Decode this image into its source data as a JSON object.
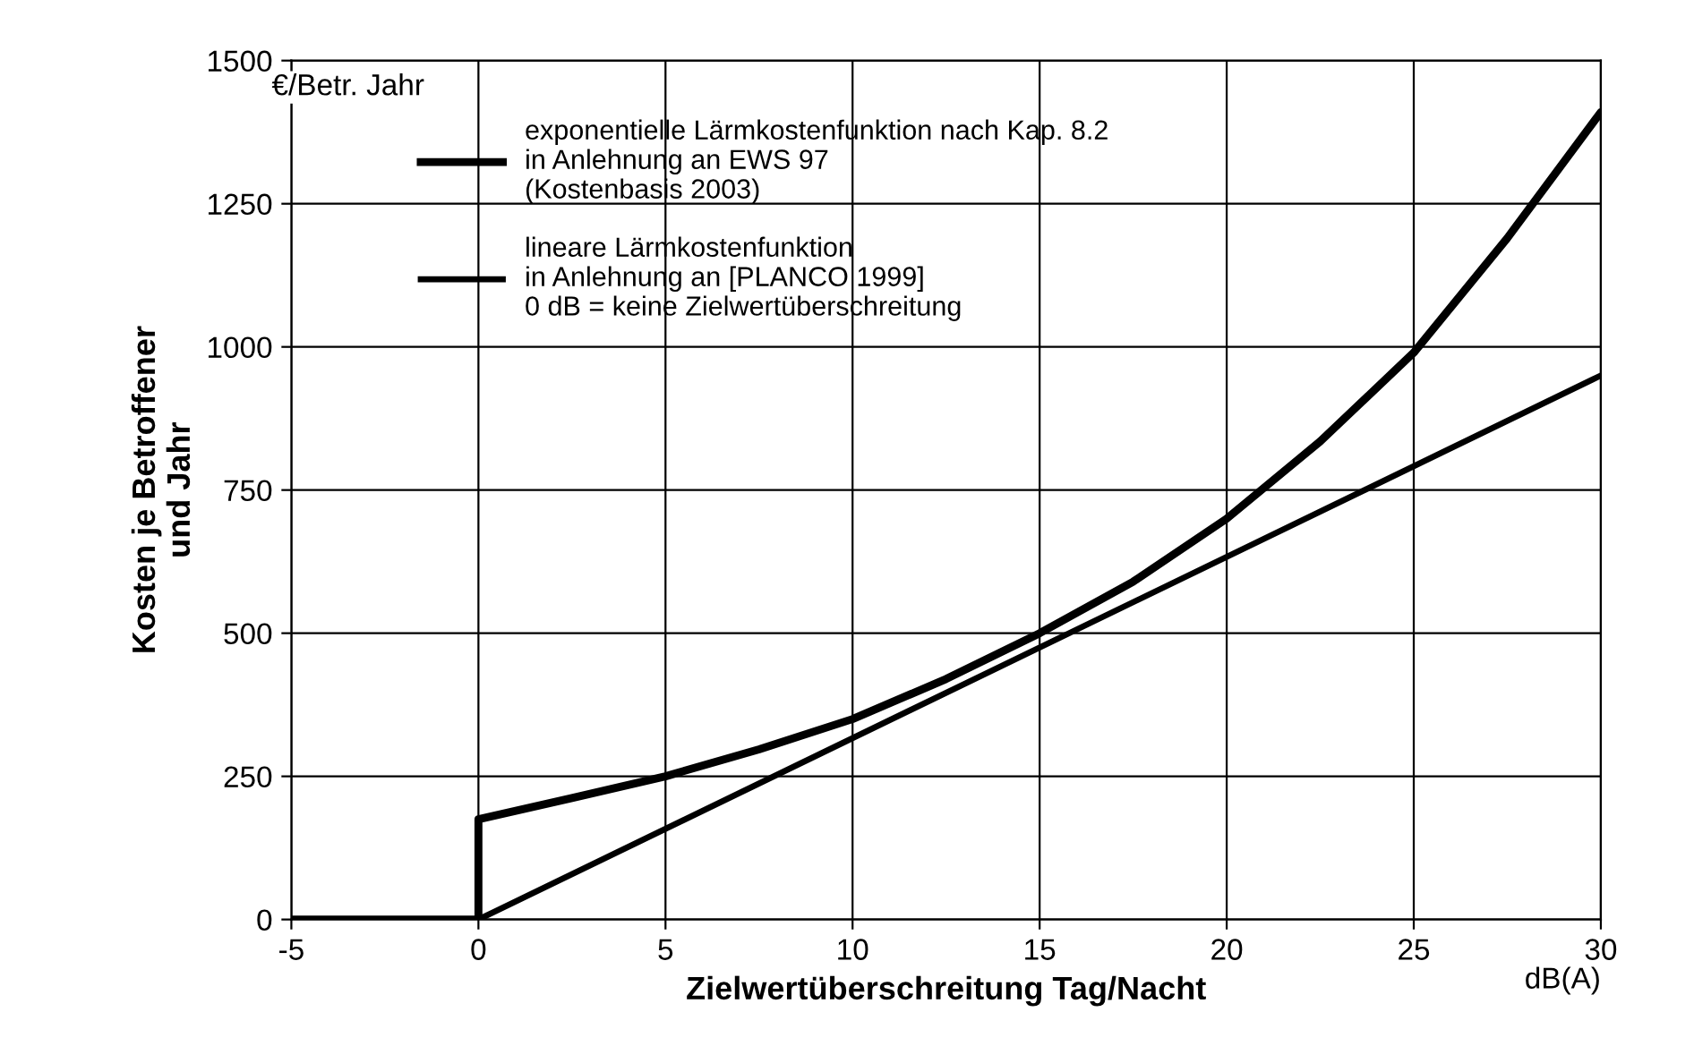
{
  "chart_data": {
    "type": "line",
    "xlabel": "Zielwertüberschreitung Tag/Nacht",
    "ylabel": "Kosten je Betroffener\nund Jahr",
    "annotations": [
      "€/Betr. Jahr",
      "dB(A)"
    ],
    "series": [
      {
        "name": "exponentielle Lärmkostenfunktion nach Kap. 8.2\nin Anlehnung an EWS 97\n(Kostenbasis 2003)",
        "color": "#000000",
        "x": [
          -5,
          0,
          0,
          2.5,
          5,
          7.5,
          10,
          12.5,
          15,
          17.5,
          20,
          22.5,
          25,
          27.5,
          30
        ],
        "values": [
          0,
          0,
          175,
          212,
          250,
          297,
          350,
          420,
          500,
          590,
          700,
          835,
          990,
          1190,
          1410
        ]
      },
      {
        "name": "lineare Lärmkostenfunktion\nin Anlehnung an [PLANCO 1999]\n0 dB = keine Zielwertüberschreitung",
        "color": "#000000",
        "x": [
          -5,
          0,
          30
        ],
        "values": [
          0,
          0,
          950
        ]
      }
    ],
    "xlim": [
      -5,
      30
    ],
    "xticks": [
      -5,
      0,
      5,
      10,
      15,
      20,
      25,
      30
    ],
    "ylim": [
      0,
      1500
    ],
    "yticks": [
      0,
      250,
      500,
      750,
      1000,
      1250,
      1500
    ],
    "grid": true,
    "legend": "top left",
    "marker": "none",
    "line_style": "solid"
  }
}
